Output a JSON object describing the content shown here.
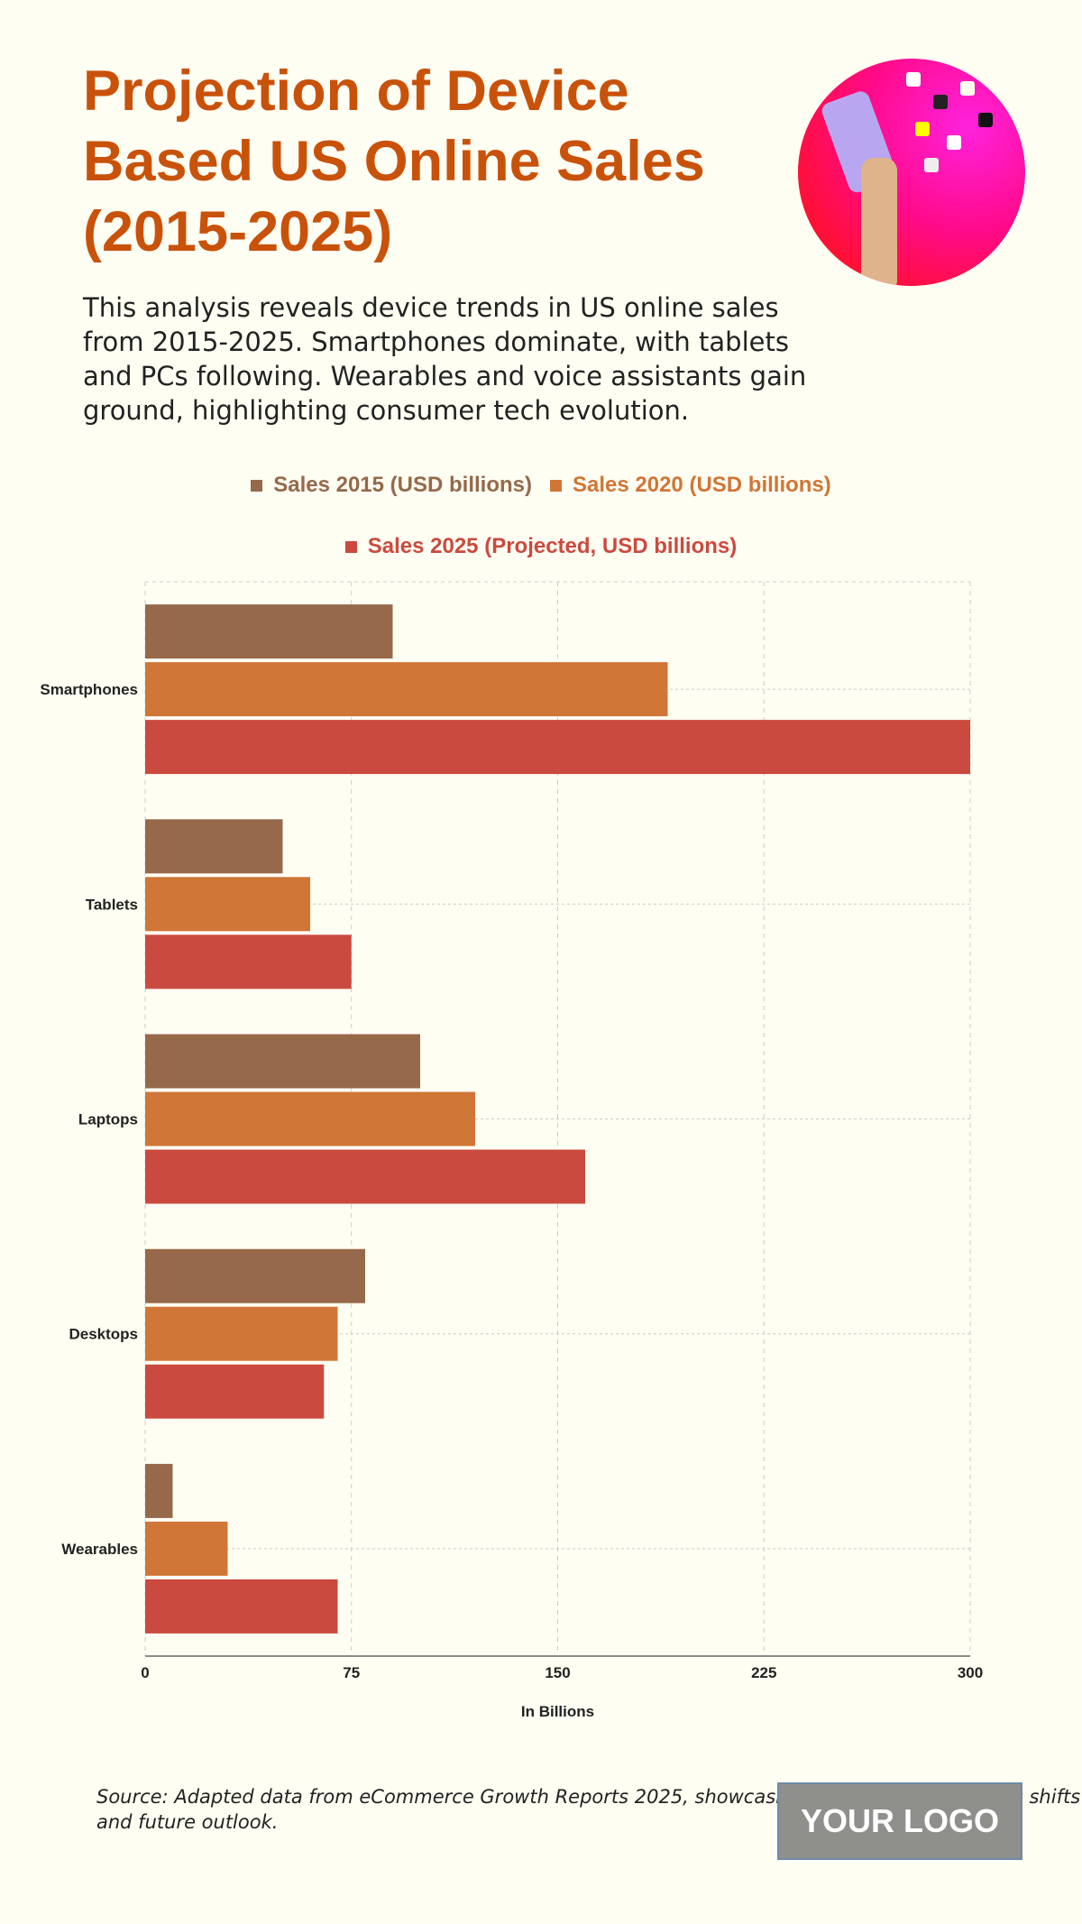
{
  "header": {
    "title": "Projection of Device Based US Online Sales (2015-2025)",
    "description": "This analysis reveals device trends in US online sales from 2015-2025. Smartphones dominate, with tablets and PCs following. Wearables and voice assistants gain ground, highlighting consumer tech evolution."
  },
  "chart_data": {
    "type": "bar",
    "orientation": "horizontal",
    "categories": [
      "Smartphones",
      "Tablets",
      "Laptops",
      "Desktops",
      "Wearables"
    ],
    "series": [
      {
        "name": "Sales 2015 (USD billions)",
        "color": "#96694a",
        "values": [
          90,
          50,
          100,
          80,
          10
        ]
      },
      {
        "name": "Sales 2020 (USD billions)",
        "color": "#d07637",
        "values": [
          190,
          60,
          120,
          70,
          30
        ]
      },
      {
        "name": "Sales 2025 (Projected, USD billions)",
        "color": "#cb4a3f",
        "values": [
          300,
          75,
          160,
          65,
          70
        ]
      }
    ],
    "xlabel": "In Billions",
    "ylabel": "",
    "xlim": [
      0,
      300
    ],
    "xticks": [
      "0",
      "75",
      "150",
      "225",
      "300"
    ],
    "grid": true,
    "legend_position": "top"
  },
  "footer": {
    "source": "Source: Adapted data from eCommerce Growth Reports 2025, showcasing US device-based sales shifts and future outlook.",
    "logo": "YOUR LOGO"
  }
}
